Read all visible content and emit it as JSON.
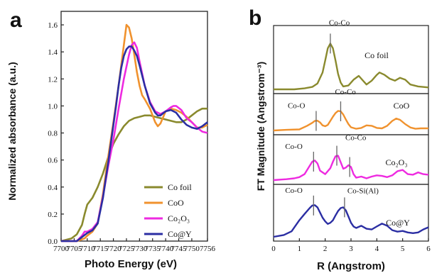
{
  "chart_data": [
    {
      "panel": "a",
      "type": "line",
      "xlabel": "Photo Energy (eV)",
      "ylabel": "Normalized  absorbance  (a.u.)",
      "xlim": [
        7700,
        7756
      ],
      "ylim": [
        0.0,
        1.7
      ],
      "xticks": [
        "7700",
        "7705",
        "7710",
        "7715",
        "7720",
        "7725",
        "7730",
        "7735",
        "7740",
        "7745",
        "7750",
        "7756"
      ],
      "yticks": [
        "0.0",
        "0.2",
        "0.4",
        "0.6",
        "0.8",
        "1.0",
        "1.2",
        "1.4",
        "1.6"
      ],
      "legend_position": "bottom-right",
      "series": [
        {
          "name": "Co foil",
          "color": "#8a8a2e",
          "x": [
            7700,
            7704,
            7706,
            7708,
            7709,
            7710,
            7712,
            7714,
            7716,
            7718,
            7720,
            7722,
            7724,
            7726,
            7728,
            7730,
            7732,
            7734,
            7736,
            7738,
            7740,
            7742,
            7744,
            7746,
            7748,
            7750,
            7752,
            7754,
            7756
          ],
          "y": [
            0.0,
            0.02,
            0.05,
            0.12,
            0.2,
            0.27,
            0.32,
            0.4,
            0.5,
            0.62,
            0.72,
            0.79,
            0.85,
            0.89,
            0.91,
            0.92,
            0.93,
            0.93,
            0.92,
            0.91,
            0.9,
            0.89,
            0.88,
            0.88,
            0.9,
            0.93,
            0.96,
            0.98,
            0.98
          ]
        },
        {
          "name": "CoO",
          "color": "#f0922e",
          "x": [
            7700,
            7706,
            7709,
            7710,
            7712,
            7714,
            7716,
            7718,
            7720,
            7722,
            7723,
            7724,
            7725,
            7726,
            7727,
            7728,
            7729,
            7730,
            7731,
            7732,
            7734,
            7736,
            7737,
            7738,
            7740,
            7742,
            7744,
            7746,
            7748,
            7750,
            7752,
            7754,
            7756
          ],
          "y": [
            0.0,
            0.0,
            0.02,
            0.04,
            0.07,
            0.13,
            0.35,
            0.62,
            0.88,
            1.15,
            1.3,
            1.45,
            1.6,
            1.58,
            1.5,
            1.38,
            1.25,
            1.15,
            1.08,
            1.05,
            0.98,
            0.88,
            0.85,
            0.87,
            0.96,
            0.98,
            0.97,
            0.95,
            0.92,
            0.88,
            0.84,
            0.84,
            0.86
          ]
        },
        {
          "name": "Co₂O₃",
          "color": "#ee2ae0",
          "x": [
            7700,
            7706,
            7708,
            7709,
            7710,
            7712,
            7714,
            7716,
            7718,
            7720,
            7722,
            7724,
            7726,
            7727,
            7728,
            7729,
            7730,
            7732,
            7734,
            7736,
            7738,
            7740,
            7742,
            7743,
            7744,
            7746,
            7748,
            7750,
            7752,
            7754,
            7756
          ],
          "y": [
            0.0,
            0.0,
            0.04,
            0.07,
            0.07,
            0.09,
            0.14,
            0.33,
            0.55,
            0.75,
            0.98,
            1.2,
            1.38,
            1.45,
            1.47,
            1.43,
            1.33,
            1.15,
            1.03,
            0.96,
            0.94,
            0.96,
            0.99,
            1.0,
            1.0,
            0.97,
            0.91,
            0.88,
            0.84,
            0.81,
            0.8
          ]
        },
        {
          "name": "Co@Y",
          "color": "#2b2ea3",
          "x": [
            7700,
            7706,
            7708,
            7710,
            7712,
            7714,
            7716,
            7718,
            7720,
            7721,
            7722,
            7723,
            7724,
            7725,
            7726,
            7727,
            7728,
            7729,
            7730,
            7732,
            7734,
            7736,
            7737,
            7738,
            7740,
            7742,
            7744,
            7746,
            7748,
            7750,
            7752,
            7754,
            7756
          ],
          "y": [
            0.0,
            0.0,
            0.03,
            0.06,
            0.08,
            0.13,
            0.32,
            0.58,
            0.86,
            1.0,
            1.15,
            1.28,
            1.37,
            1.42,
            1.44,
            1.44,
            1.41,
            1.37,
            1.3,
            1.15,
            1.02,
            0.95,
            0.93,
            0.93,
            0.96,
            0.97,
            0.95,
            0.9,
            0.86,
            0.84,
            0.83,
            0.85,
            0.88
          ]
        }
      ]
    },
    {
      "panel": "b",
      "type": "line",
      "xlabel": "R (Angstrom)",
      "ylabel": "FT Magnitude (Angstrom⁻³)",
      "xlim": [
        0,
        6
      ],
      "xticks": [
        "0",
        "1",
        "2",
        "3",
        "4",
        "5",
        "6"
      ],
      "subpanels": [
        {
          "label": "Co foil",
          "color": "#8a8a2e",
          "x": [
            0,
            0.8,
            1.2,
            1.5,
            1.7,
            1.9,
            2.0,
            2.1,
            2.2,
            2.3,
            2.4,
            2.5,
            2.6,
            2.7,
            2.9,
            3.1,
            3.3,
            3.4,
            3.6,
            3.8,
            4.0,
            4.1,
            4.3,
            4.5,
            4.7,
            4.9,
            5.1,
            5.3,
            5.6,
            6.0
          ],
          "y": [
            0,
            0.0,
            0.02,
            0.05,
            0.12,
            0.35,
            0.6,
            0.85,
            0.95,
            0.85,
            0.6,
            0.32,
            0.14,
            0.06,
            0.08,
            0.2,
            0.28,
            0.22,
            0.1,
            0.18,
            0.3,
            0.35,
            0.3,
            0.22,
            0.18,
            0.24,
            0.2,
            0.1,
            0.06,
            0.04
          ],
          "peaks": [
            {
              "label": "Co-Co",
              "r": 2.2
            }
          ]
        },
        {
          "label": "CoO",
          "color": "#f0922e",
          "x": [
            0,
            0.5,
            1.0,
            1.3,
            1.5,
            1.6,
            1.7,
            1.8,
            1.9,
            2.0,
            2.1,
            2.2,
            2.3,
            2.4,
            2.5,
            2.6,
            2.7,
            2.8,
            2.9,
            3.0,
            3.2,
            3.4,
            3.6,
            3.8,
            4.0,
            4.2,
            4.4,
            4.6,
            4.75,
            4.9,
            5.1,
            5.3,
            5.5,
            5.7,
            6.0
          ],
          "y": [
            0,
            0.03,
            0.05,
            0.22,
            0.36,
            0.45,
            0.46,
            0.38,
            0.24,
            0.2,
            0.26,
            0.45,
            0.65,
            0.82,
            0.92,
            0.9,
            0.75,
            0.52,
            0.3,
            0.15,
            0.08,
            0.12,
            0.24,
            0.22,
            0.12,
            0.1,
            0.22,
            0.45,
            0.56,
            0.5,
            0.3,
            0.14,
            0.08,
            0.1,
            0.1
          ],
          "peaks": [
            {
              "label": "Co-O",
              "r": 1.65
            },
            {
              "label": "Co-Co",
              "r": 2.6
            }
          ]
        },
        {
          "label": "Co₂O₃",
          "color": "#ee2ae0",
          "x": [
            0,
            0.5,
            0.8,
            1.0,
            1.2,
            1.4,
            1.5,
            1.6,
            1.7,
            1.8,
            2.0,
            2.2,
            2.3,
            2.4,
            2.5,
            2.6,
            2.7,
            2.8,
            2.9,
            3.0,
            3.1,
            3.2,
            3.4,
            3.6,
            3.8,
            4.0,
            4.2,
            4.4,
            4.6,
            4.8,
            5.0,
            5.2,
            5.4,
            5.6,
            5.8,
            6.0
          ],
          "y": [
            0,
            0.03,
            0.06,
            0.1,
            0.2,
            0.48,
            0.62,
            0.66,
            0.56,
            0.32,
            0.2,
            0.4,
            0.62,
            0.8,
            0.82,
            0.6,
            0.38,
            0.42,
            0.5,
            0.44,
            0.2,
            0.08,
            0.12,
            0.06,
            0.12,
            0.16,
            0.14,
            0.1,
            0.16,
            0.3,
            0.34,
            0.2,
            0.18,
            0.26,
            0.2,
            0.18
          ],
          "peaks": [
            {
              "label": "Co-O",
              "r": 1.55
            },
            {
              "label": "Co-Co",
              "r": 2.45
            },
            {
              "label": "",
              "r": 2.95
            }
          ]
        },
        {
          "label": "Co@Y",
          "color": "#2b2ea3",
          "x": [
            0,
            0.4,
            0.7,
            1.0,
            1.2,
            1.4,
            1.5,
            1.6,
            1.7,
            1.8,
            1.9,
            2.0,
            2.1,
            2.2,
            2.3,
            2.4,
            2.5,
            2.6,
            2.7,
            2.8,
            2.9,
            3.0,
            3.1,
            3.2,
            3.4,
            3.6,
            3.8,
            4.0,
            4.2,
            4.4,
            4.6,
            4.8,
            5.0,
            5.2,
            5.4,
            5.6,
            5.8,
            6.0
          ],
          "y": [
            0,
            0.05,
            0.15,
            0.45,
            0.62,
            0.78,
            0.85,
            0.86,
            0.8,
            0.66,
            0.52,
            0.42,
            0.35,
            0.38,
            0.45,
            0.58,
            0.7,
            0.78,
            0.8,
            0.72,
            0.55,
            0.38,
            0.28,
            0.24,
            0.3,
            0.22,
            0.2,
            0.28,
            0.36,
            0.3,
            0.18,
            0.14,
            0.16,
            0.12,
            0.1,
            0.12,
            0.2,
            0.26
          ],
          "peaks": [
            {
              "label": "Co-O",
              "r": 1.55
            },
            {
              "label": "Co-Si(Al)",
              "r": 2.75
            }
          ]
        }
      ]
    }
  ],
  "panel_labels": {
    "a": "a",
    "b": "b"
  },
  "legend": {
    "items": [
      {
        "label": "Co foil",
        "color": "#8a8a2e"
      },
      {
        "label": "CoO",
        "color": "#f0922e"
      },
      {
        "label": "Co₂O₃",
        "color": "#ee2ae0"
      },
      {
        "label": "Co@Y",
        "color": "#2b2ea3"
      }
    ]
  }
}
